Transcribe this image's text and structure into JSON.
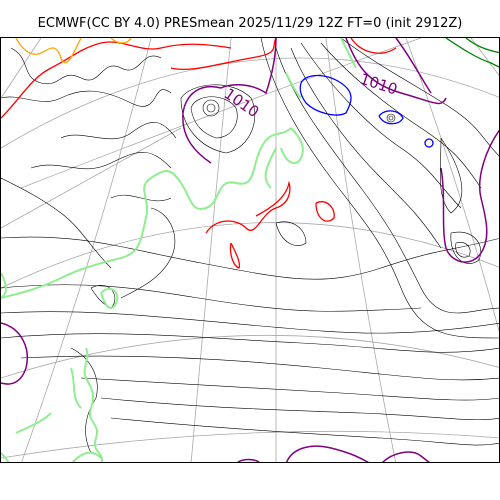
{
  "title": "ECMWF(CC BY 4.0) PRESmean 2025/11/29 12Z FT=0 (init 2912Z)",
  "contour_labels": [
    {
      "text": "1010",
      "color": "#800080"
    },
    {
      "text": "1010",
      "color": "#800080"
    }
  ],
  "colors": {
    "isobar_thin": "#000000",
    "isobar_1010": "#800080",
    "isobar_1020": "#ff0000",
    "isobar_1025": "#ffa500",
    "isobar_1000": "#0000ff",
    "isobar_990": "#008000",
    "coastline": "#90ee90",
    "graticule": "#a9a9a9"
  }
}
